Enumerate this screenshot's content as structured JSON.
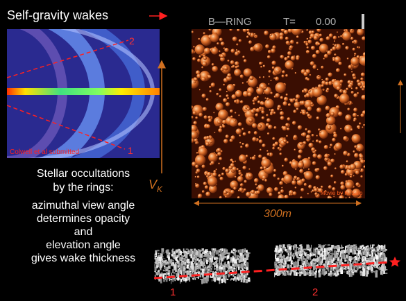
{
  "title": "Self-gravity wakes",
  "left_image": {
    "labels": [
      "2",
      "1"
    ],
    "credit": "Colwell et al submitted"
  },
  "velocity_label": {
    "main": "V",
    "subscript": "K"
  },
  "simulation": {
    "header": [
      "B—RING",
      "T=",
      "0.00"
    ],
    "credit": "Movie by H. Salo",
    "scale": "300m"
  },
  "text": {
    "heading": [
      "Stellar occultations",
      "by the rings:"
    ],
    "body": [
      "azimuthal view angle",
      "determines opacity",
      "and",
      "elevation angle",
      "gives wake thickness"
    ]
  },
  "bottom_labels": [
    "1",
    "2"
  ]
}
